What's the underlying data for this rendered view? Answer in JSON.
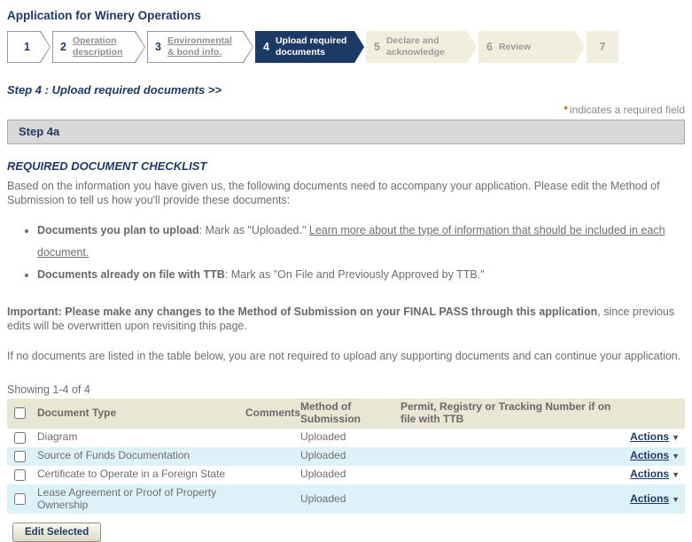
{
  "page": {
    "title": "Application for Winery Operations"
  },
  "wizard": {
    "steps": [
      {
        "number": "1",
        "label": ""
      },
      {
        "number": "2",
        "label": "Operation description"
      },
      {
        "number": "3",
        "label": "Environmental & bond info."
      },
      {
        "number": "4",
        "label": "Upload required documents"
      },
      {
        "number": "5",
        "label": "Declare and acknowledge"
      },
      {
        "number": "6",
        "label": "Review"
      },
      {
        "number": "7",
        "label": ""
      }
    ]
  },
  "step_heading": "Step 4 : Upload required documents >>",
  "required_note": {
    "asterisk": "*",
    "text": "indicates a required field"
  },
  "section_bar": "Step 4a",
  "checklist": {
    "title": "REQUIRED DOCUMENT CHECKLIST",
    "intro": "Based on the information you have given us, the following documents need to accompany your application. Please edit the Method of Submission to tell us how you'll provide these documents:",
    "bullets": [
      {
        "bold": "Documents you plan to upload",
        "text": ": Mark as \"Uploaded.\" ",
        "link": "Learn more about the type of information that should be included in each document."
      },
      {
        "bold": "Documents already on file with TTB",
        "text": ": Mark as \"On File and Previously Approved by TTB.\"",
        "link": ""
      }
    ],
    "important_bold": "Important: Please make any changes to the Method of Submission on your FINAL PASS through this application",
    "important_rest": ", since previous edits will be overwritten upon revisiting this page.",
    "no_docs_note": "If no documents are listed in the table below, you are not required to upload any supporting documents and can continue your application."
  },
  "table": {
    "showing": "Showing 1-4 of 4",
    "headers": {
      "document_type": "Document Type",
      "comments": "Comments",
      "method": "Method of Submission",
      "permit": "Permit, Registry or Tracking Number if on file with TTB"
    },
    "rows": [
      {
        "document_type": "Diagram",
        "comments": "",
        "method": "Uploaded",
        "permit": "",
        "actions": "Actions"
      },
      {
        "document_type": "Source of Funds Documentation",
        "comments": "",
        "method": "Uploaded",
        "permit": "",
        "actions": "Actions"
      },
      {
        "document_type": "Certificate to Operate in a Foreign State",
        "comments": "",
        "method": "Uploaded",
        "permit": "",
        "actions": "Actions"
      },
      {
        "document_type": "Lease Agreement or Proof of Property Ownership",
        "comments": "",
        "method": "Uploaded",
        "permit": "",
        "actions": "Actions"
      }
    ]
  },
  "buttons": {
    "edit_selected": "Edit Selected"
  },
  "icons": {
    "caret_down": "▼"
  },
  "colors": {
    "navy": "#1d3a67",
    "beige": "#f1eedd",
    "row_alt": "#ddf2f8",
    "header_bg": "#e9e6d3",
    "bar_bg": "#d8d8d8",
    "asterisk": "#cc6600"
  }
}
